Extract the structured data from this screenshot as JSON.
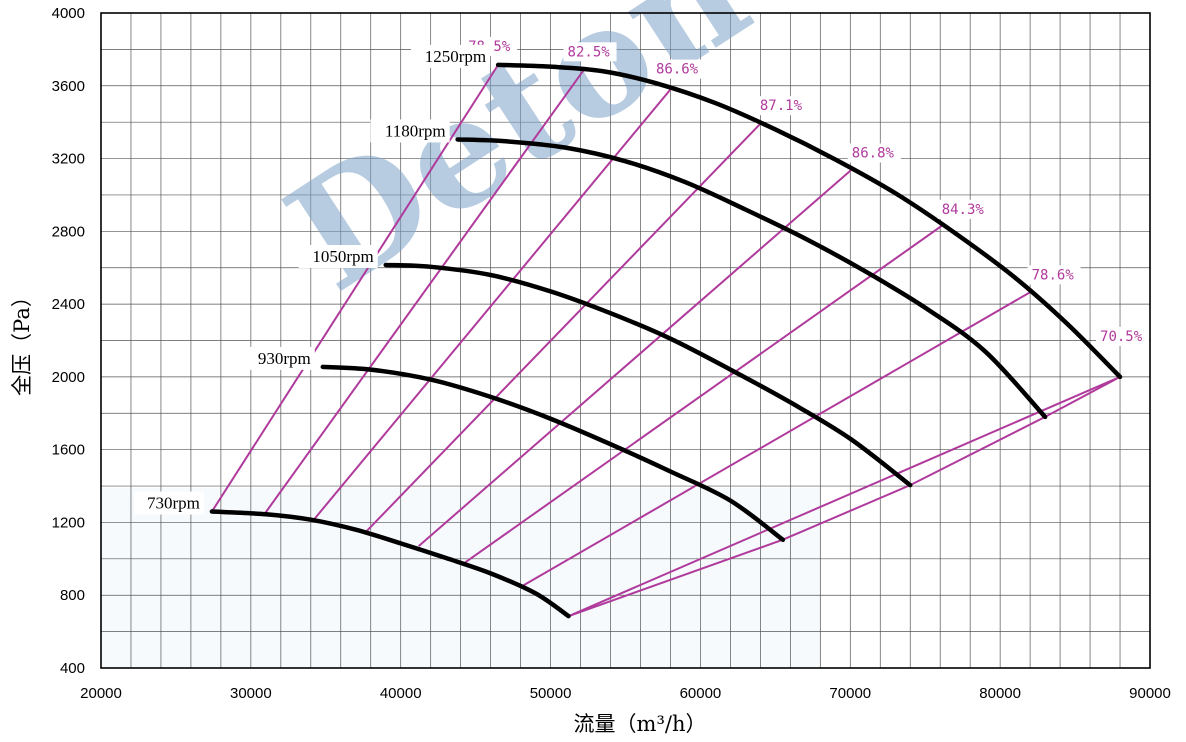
{
  "chart_data": {
    "type": "line",
    "xlabel": "流量（m³/h）",
    "ylabel": "全压（Pa）",
    "xlim": [
      20000,
      90000
    ],
    "ylim": [
      400,
      4000
    ],
    "x_ticks": [
      "20000",
      "30000",
      "40000",
      "50000",
      "60000",
      "70000",
      "80000",
      "90000"
    ],
    "y_ticks": [
      "400",
      "800",
      "1200",
      "1600",
      "2000",
      "2400",
      "2800",
      "3200",
      "3600",
      "4000"
    ],
    "watermark": "Deton",
    "series": [
      {
        "name": "730rpm",
        "points": [
          [
            27400,
            1260
          ],
          [
            31000,
            1245
          ],
          [
            34000,
            1215
          ],
          [
            37000,
            1160
          ],
          [
            40000,
            1085
          ],
          [
            43000,
            1005
          ],
          [
            46000,
            920
          ],
          [
            49000,
            810
          ],
          [
            51200,
            685
          ]
        ]
      },
      {
        "name": "930rpm",
        "points": [
          [
            34800,
            2055
          ],
          [
            38000,
            2040
          ],
          [
            42000,
            1985
          ],
          [
            46000,
            1890
          ],
          [
            50000,
            1770
          ],
          [
            54000,
            1630
          ],
          [
            58000,
            1480
          ],
          [
            62000,
            1320
          ],
          [
            65500,
            1105
          ]
        ]
      },
      {
        "name": "1050rpm",
        "points": [
          [
            39000,
            2615
          ],
          [
            42000,
            2605
          ],
          [
            46000,
            2560
          ],
          [
            50000,
            2470
          ],
          [
            54000,
            2350
          ],
          [
            58000,
            2210
          ],
          [
            62000,
            2040
          ],
          [
            66000,
            1860
          ],
          [
            70000,
            1660
          ],
          [
            74000,
            1405
          ]
        ]
      },
      {
        "name": "1180rpm",
        "points": [
          [
            43800,
            3305
          ],
          [
            47000,
            3295
          ],
          [
            51000,
            3260
          ],
          [
            55000,
            3185
          ],
          [
            59000,
            3070
          ],
          [
            63000,
            2920
          ],
          [
            67000,
            2760
          ],
          [
            71000,
            2580
          ],
          [
            75000,
            2380
          ],
          [
            79000,
            2140
          ],
          [
            83000,
            1780
          ]
        ]
      },
      {
        "name": "1250rpm",
        "points": [
          [
            46500,
            3715
          ],
          [
            50000,
            3705
          ],
          [
            53500,
            3680
          ],
          [
            57000,
            3615
          ],
          [
            61000,
            3505
          ],
          [
            65000,
            3360
          ],
          [
            69000,
            3195
          ],
          [
            73000,
            3010
          ],
          [
            77000,
            2790
          ],
          [
            81000,
            2545
          ],
          [
            84500,
            2290
          ],
          [
            88000,
            2000
          ]
        ]
      }
    ],
    "efficiency_lines": [
      {
        "label": "78.5%",
        "points": [
          [
            27400,
            1260
          ],
          [
            46500,
            3715
          ]
        ]
      },
      {
        "label": "82.5%",
        "points": [
          [
            30900,
            1245
          ],
          [
            52200,
            3685
          ]
        ]
      },
      {
        "label": "86.6%",
        "points": [
          [
            34200,
            1215
          ],
          [
            58100,
            3590
          ]
        ]
      },
      {
        "label": "87.1%",
        "points": [
          [
            37700,
            1150
          ],
          [
            64100,
            3400
          ]
        ]
      },
      {
        "label": "86.8%",
        "points": [
          [
            41200,
            1070
          ],
          [
            70100,
            3140
          ]
        ]
      },
      {
        "label": "84.3%",
        "points": [
          [
            44300,
            980
          ],
          [
            76100,
            2830
          ]
        ]
      },
      {
        "label": "78.6%",
        "points": [
          [
            48100,
            850
          ],
          [
            82100,
            2470
          ]
        ]
      },
      {
        "label": "70.5%",
        "points": [
          [
            51200,
            685
          ],
          [
            88000,
            2000
          ]
        ]
      }
    ]
  }
}
